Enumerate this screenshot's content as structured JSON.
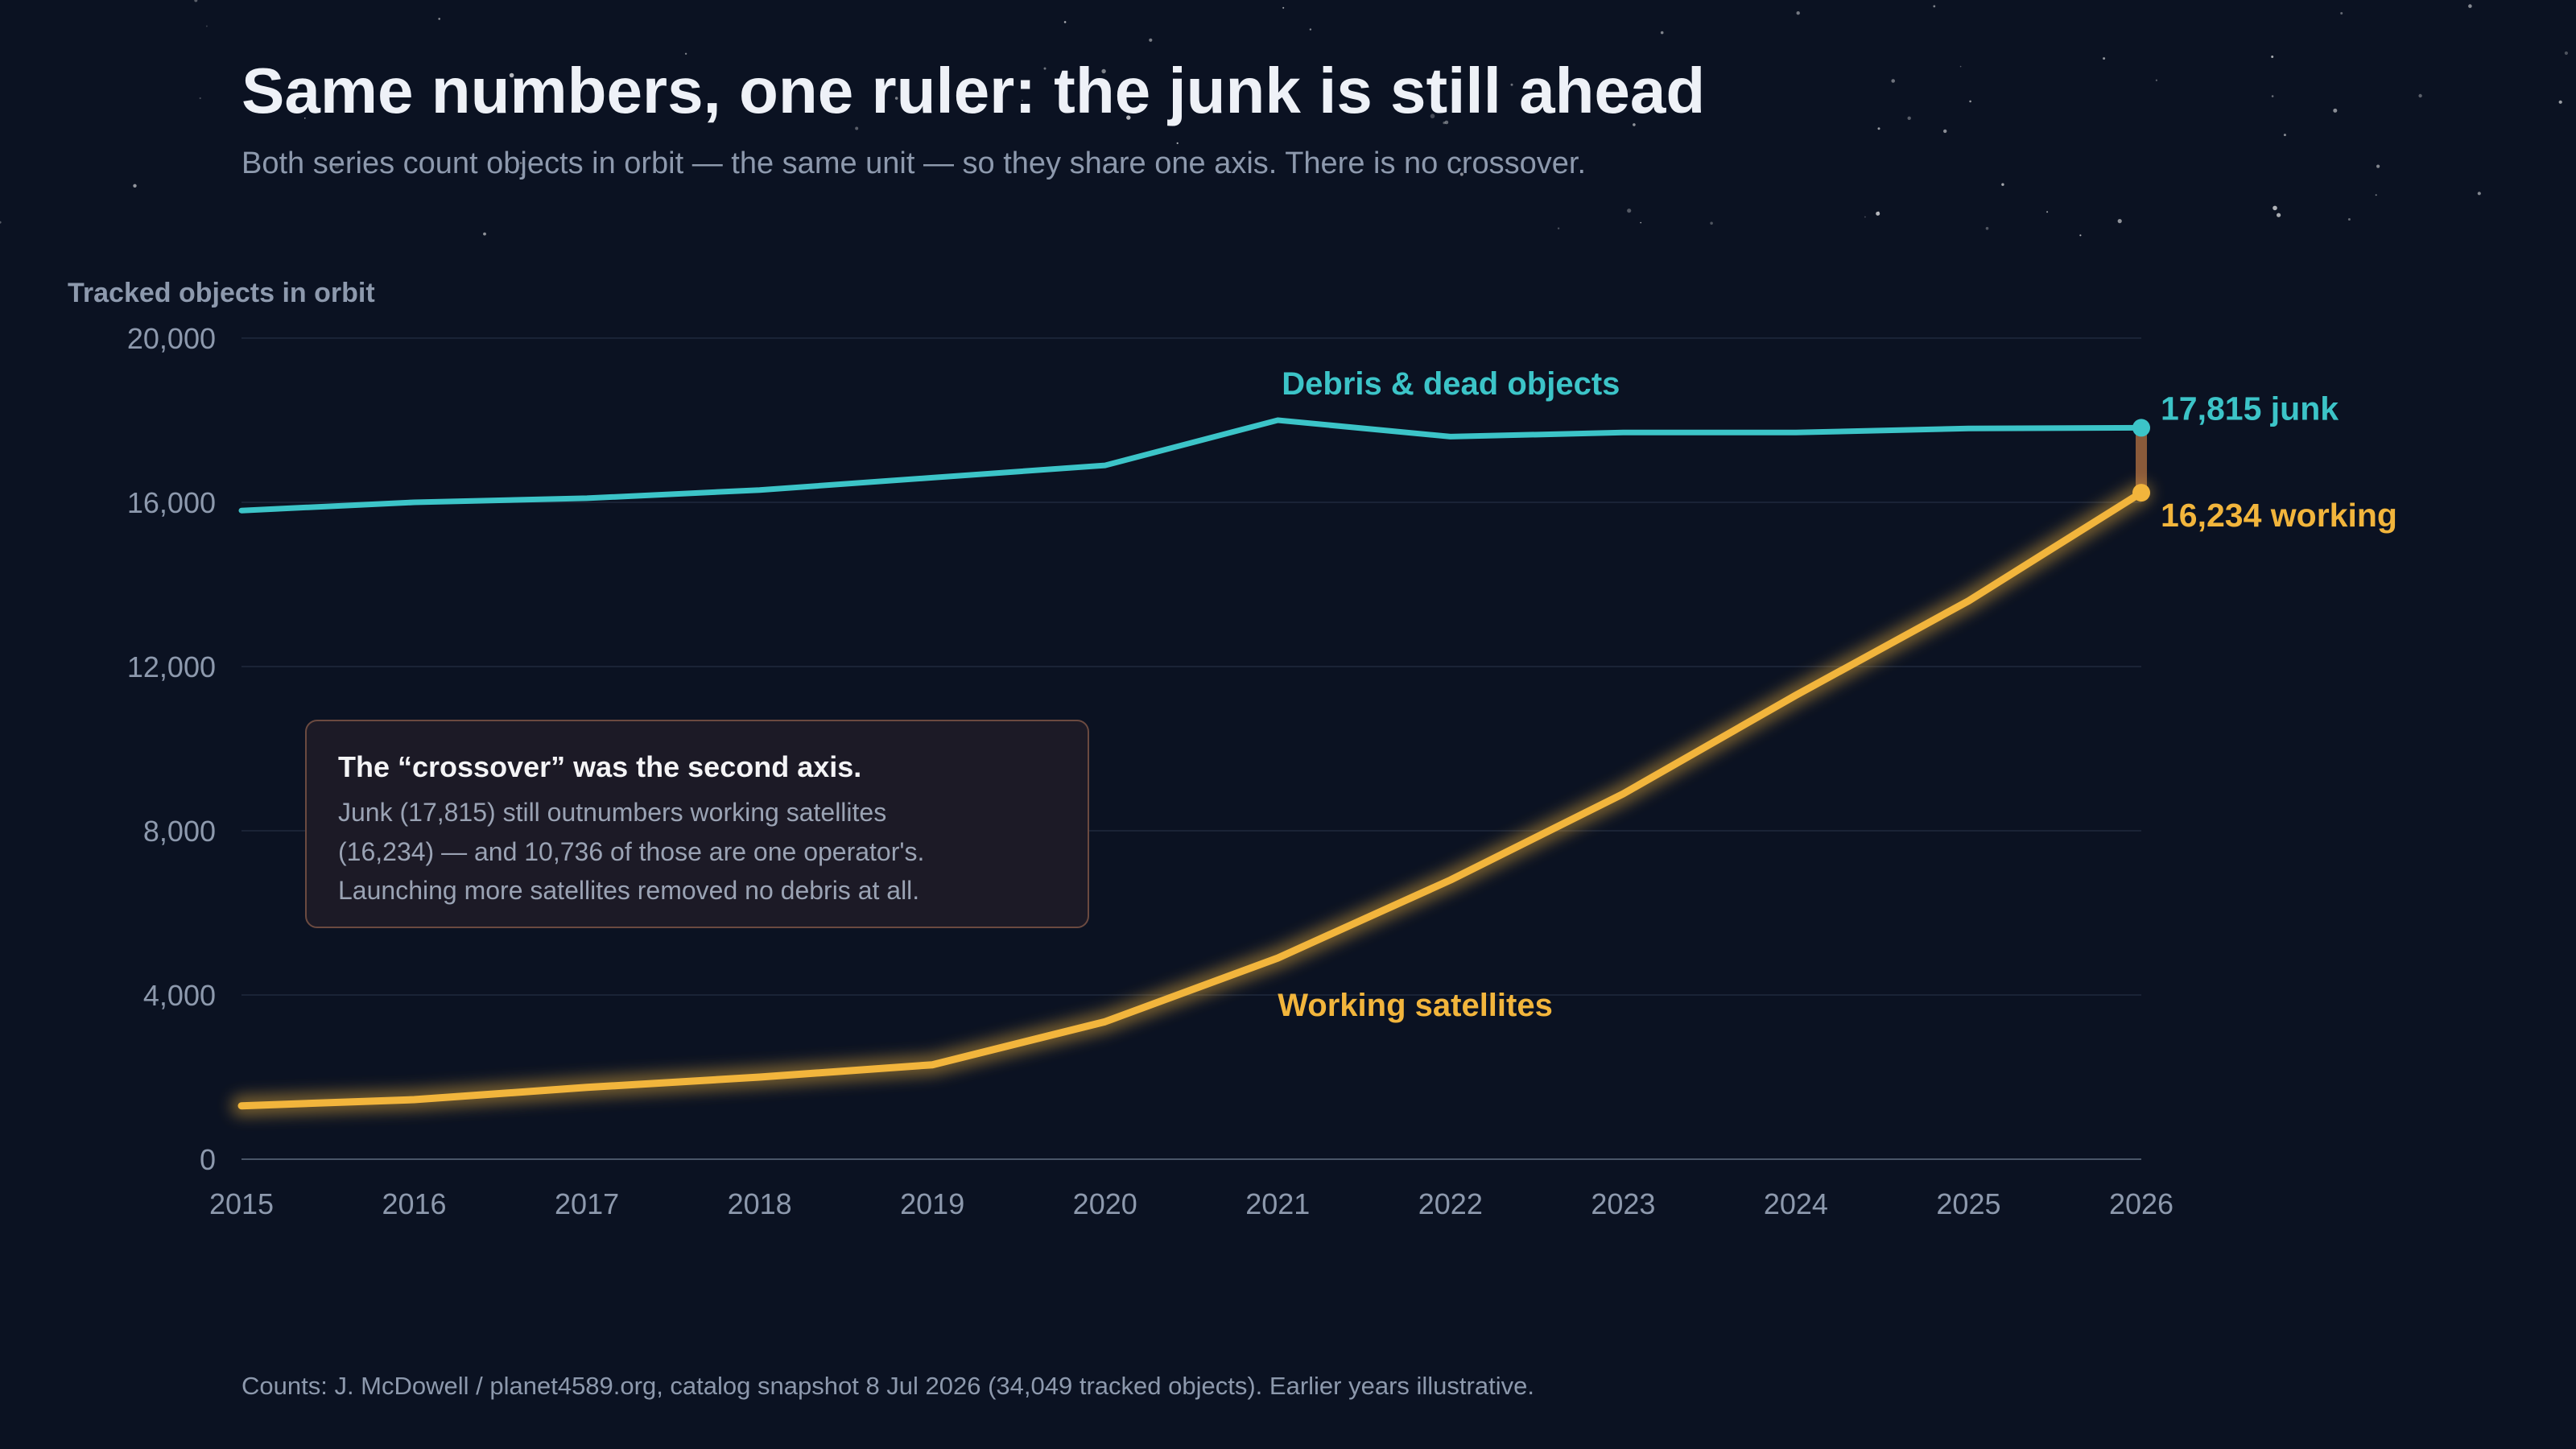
{
  "colors": {
    "background": "#0b1222",
    "debris": "#3cc4c8",
    "working": "#f2b53c",
    "gap": "#8a5a3a",
    "muted": "#8d99ad",
    "title": "#eef1f7"
  },
  "header": {
    "title": "Same numbers, one ruler: the junk is still ahead",
    "subtitle": "Both series count objects in orbit — the same unit — so they share one axis. There is no crossover."
  },
  "callout": {
    "title": "The “crossover” was the second axis.",
    "lines": [
      "Junk (17,815) still outnumbers working satellites",
      "(16,234) — and 10,736 of those are one operator's.",
      "Launching more satellites removed no debris at all."
    ]
  },
  "source": "Counts: J. McDowell / planet4589.org, catalog snapshot 8 Jul 2026 (34,049 tracked objects). Earlier years illustrative.",
  "chart_data": {
    "type": "line",
    "title": "Same numbers, one ruler: the junk is still ahead",
    "subtitle": "Both series count objects in orbit — the same unit — so they share one axis. There is no crossover.",
    "xlabel": "",
    "ylabel": "Tracked objects in orbit",
    "x": [
      2015,
      2016,
      2017,
      2018,
      2019,
      2020,
      2021,
      2022,
      2023,
      2024,
      2025,
      2026
    ],
    "xlim": [
      2015,
      2026
    ],
    "ylim": [
      0,
      20000
    ],
    "y_ticks": [
      0,
      4000,
      8000,
      12000,
      16000,
      20000
    ],
    "y_tick_labels": [
      "0",
      "4,000",
      "8,000",
      "12,000",
      "16,000",
      "20,000"
    ],
    "grid": true,
    "legend": "direct labels",
    "series": [
      {
        "name": "Debris & dead objects",
        "color": "#3cc4c8",
        "values": [
          15800,
          16000,
          16100,
          16300,
          16600,
          16900,
          18000,
          17600,
          17700,
          17700,
          17800,
          17815
        ],
        "end_label": "17,815 junk"
      },
      {
        "name": "Working satellites",
        "color": "#f2b53c",
        "values": [
          1300,
          1450,
          1750,
          2000,
          2300,
          3350,
          4900,
          6800,
          8900,
          11300,
          13600,
          16234
        ],
        "end_label": "16,234 working"
      }
    ]
  }
}
